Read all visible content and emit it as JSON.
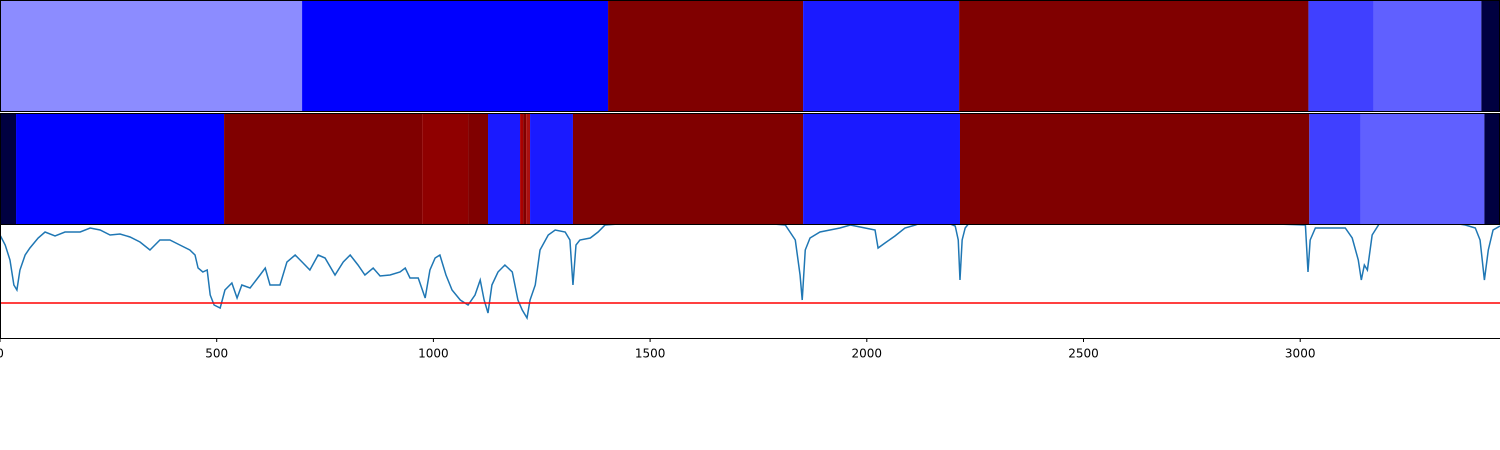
{
  "chart_data": {
    "type": "line",
    "xlim": [
      0,
      3461
    ],
    "xticks": [
      0,
      500,
      1000,
      1500,
      2000,
      2500,
      3000
    ],
    "ylim": [
      0,
      113
    ],
    "color": "#1f77b4",
    "threshold": {
      "value": 35,
      "color": "#ff0000"
    },
    "tracks": [
      {
        "segments": [
          {
            "start": 0,
            "end": 697,
            "color": "#8c8cff"
          },
          {
            "start": 697,
            "end": 1403,
            "color": "#0000ff"
          },
          {
            "start": 1403,
            "end": 1853,
            "color": "#800000"
          },
          {
            "start": 1853,
            "end": 2213,
            "color": "#1a1aff"
          },
          {
            "start": 2213,
            "end": 3019,
            "color": "#800000"
          },
          {
            "start": 3019,
            "end": 3169,
            "color": "#4040ff"
          },
          {
            "start": 3169,
            "end": 3418,
            "color": "#6060ff"
          },
          {
            "start": 3418,
            "end": 3461,
            "color": "#000040"
          }
        ]
      },
      {
        "segments": [
          {
            "start": 0,
            "end": 37,
            "color": "#000040"
          },
          {
            "start": 37,
            "end": 517,
            "color": "#0000ff"
          },
          {
            "start": 517,
            "end": 974,
            "color": "#800000"
          },
          {
            "start": 974,
            "end": 1080,
            "color": "#8f0000"
          },
          {
            "start": 1080,
            "end": 1126,
            "color": "#800000"
          },
          {
            "start": 1126,
            "end": 1200,
            "color": "#1a1aff"
          },
          {
            "start": 1200,
            "end": 1207,
            "color": "#aa0000"
          },
          {
            "start": 1207,
            "end": 1214,
            "color": "#800000"
          },
          {
            "start": 1214,
            "end": 1223,
            "color": "#aa1010"
          },
          {
            "start": 1223,
            "end": 1322,
            "color": "#1a1aff"
          },
          {
            "start": 1322,
            "end": 1853,
            "color": "#800000"
          },
          {
            "start": 1853,
            "end": 2215,
            "color": "#1a1aff"
          },
          {
            "start": 2215,
            "end": 3021,
            "color": "#800000"
          },
          {
            "start": 3021,
            "end": 3139,
            "color": "#4040ff"
          },
          {
            "start": 3139,
            "end": 3425,
            "color": "#6060ff"
          },
          {
            "start": 3425,
            "end": 3461,
            "color": "#000040"
          }
        ]
      }
    ],
    "x": [
      0,
      12,
      23,
      32,
      39,
      46,
      58,
      69,
      88,
      104,
      127,
      150,
      185,
      208,
      231,
      254,
      277,
      300,
      323,
      346,
      369,
      392,
      415,
      438,
      450,
      457,
      468,
      478,
      485,
      494,
      508,
      519,
      535,
      547,
      558,
      577,
      600,
      612,
      623,
      646,
      662,
      681,
      697,
      715,
      734,
      750,
      773,
      792,
      808,
      826,
      842,
      861,
      877,
      900,
      923,
      935,
      946,
      965,
      981,
      992,
      1004,
      1015,
      1029,
      1043,
      1062,
      1080,
      1096,
      1108,
      1117,
      1126,
      1135,
      1149,
      1165,
      1182,
      1195,
      1205,
      1216,
      1223,
      1235,
      1246,
      1265,
      1281,
      1304,
      1315,
      1322,
      1329,
      1338,
      1362,
      1380,
      1396,
      1615,
      1812,
      1835,
      1846,
      1851,
      1858,
      1869,
      1892,
      1915,
      1938,
      1962,
      1996,
      2019,
      2026,
      2042,
      2065,
      2088,
      2112,
      2158,
      2204,
      2211,
      2215,
      2220,
      2227,
      2238,
      2538,
      3012,
      3018,
      3023,
      3035,
      3069,
      3104,
      3120,
      3134,
      3141,
      3148,
      3155,
      3166,
      3185,
      3277,
      3381,
      3404,
      3415,
      3425,
      3434,
      3445,
      3461
    ],
    "values": [
      103,
      93,
      78,
      53,
      48,
      68,
      83,
      90,
      100,
      106,
      102,
      106,
      106,
      110,
      108,
      103,
      104,
      101,
      96,
      88,
      98,
      98,
      93,
      88,
      83,
      70,
      66,
      68,
      43,
      33,
      30,
      48,
      55,
      40,
      53,
      50,
      63,
      70,
      53,
      53,
      76,
      83,
      76,
      68,
      83,
      80,
      63,
      76,
      83,
      73,
      63,
      70,
      62,
      63,
      66,
      70,
      60,
      60,
      40,
      68,
      80,
      83,
      63,
      48,
      38,
      33,
      43,
      58,
      38,
      25,
      53,
      66,
      73,
      66,
      38,
      28,
      20,
      38,
      53,
      88,
      103,
      108,
      106,
      98,
      53,
      93,
      98,
      100,
      106,
      113,
      120,
      113,
      98,
      63,
      38,
      88,
      100,
      106,
      108,
      110,
      113,
      110,
      108,
      90,
      95,
      102,
      110,
      113,
      120,
      112,
      98,
      58,
      98,
      110,
      116,
      120,
      113,
      66,
      98,
      110,
      110,
      110,
      100,
      78,
      58,
      73,
      68,
      103,
      116,
      120,
      113,
      110,
      98,
      58,
      88,
      108,
      112
    ]
  }
}
